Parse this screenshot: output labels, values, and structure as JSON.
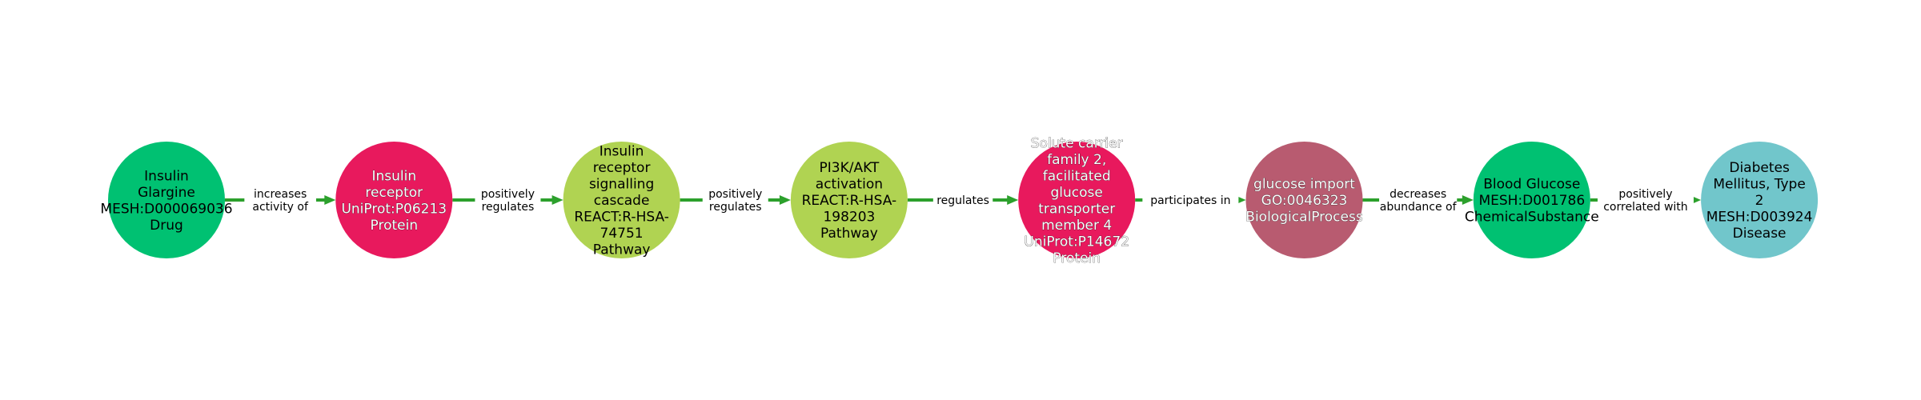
{
  "diagram": {
    "type": "knowledge-graph-path",
    "nodes": [
      {
        "id": "n1",
        "lines": [
          "Insulin",
          "Glargine",
          "MESH:D000069036",
          "Drug"
        ],
        "color": "#00c172",
        "text_style": "dark"
      },
      {
        "id": "n2",
        "lines": [
          "Insulin",
          "receptor",
          "UniProt:P06213",
          "Protein"
        ],
        "color": "#e8195d",
        "text_style": "light"
      },
      {
        "id": "n3",
        "lines": [
          "Insulin",
          "receptor",
          "signalling",
          "cascade",
          "REACT:R-HSA-",
          "74751",
          "Pathway"
        ],
        "color": "#b0d352",
        "text_style": "dark"
      },
      {
        "id": "n4",
        "lines": [
          "PI3K/AKT",
          "activation",
          "REACT:R-HSA-",
          "198203",
          "Pathway"
        ],
        "color": "#b0d352",
        "text_style": "dark"
      },
      {
        "id": "n5",
        "lines": [
          "Solute carrier",
          "family 2,",
          "facilitated",
          "glucose",
          "transporter",
          "member 4",
          "UniProt:P14672",
          "Protein"
        ],
        "color": "#e8195d",
        "text_style": "light"
      },
      {
        "id": "n6",
        "lines": [
          "glucose import",
          "GO:0046323",
          "BiologicalProcess"
        ],
        "color": "#b85b70",
        "text_style": "light"
      },
      {
        "id": "n7",
        "lines": [
          "Blood Glucose",
          "MESH:D001786",
          "ChemicalSubstance"
        ],
        "color": "#00c172",
        "text_style": "dark"
      },
      {
        "id": "n8",
        "lines": [
          "Diabetes",
          "Mellitus, Type",
          "2",
          "MESH:D003924",
          "Disease"
        ],
        "color": "#71c6cb",
        "text_style": "dark"
      }
    ],
    "edges": [
      {
        "from": "n1",
        "to": "n2",
        "lines": [
          "increases",
          "activity of"
        ]
      },
      {
        "from": "n2",
        "to": "n3",
        "lines": [
          "positively",
          "regulates"
        ]
      },
      {
        "from": "n3",
        "to": "n4",
        "lines": [
          "positively",
          "regulates"
        ]
      },
      {
        "from": "n4",
        "to": "n5",
        "lines": [
          "regulates"
        ]
      },
      {
        "from": "n5",
        "to": "n6",
        "lines": [
          "participates in"
        ]
      },
      {
        "from": "n6",
        "to": "n7",
        "lines": [
          "decreases",
          "abundance of"
        ]
      },
      {
        "from": "n7",
        "to": "n8",
        "lines": [
          "positively",
          "correlated with"
        ]
      }
    ],
    "edge_color": "#2ca02c"
  }
}
